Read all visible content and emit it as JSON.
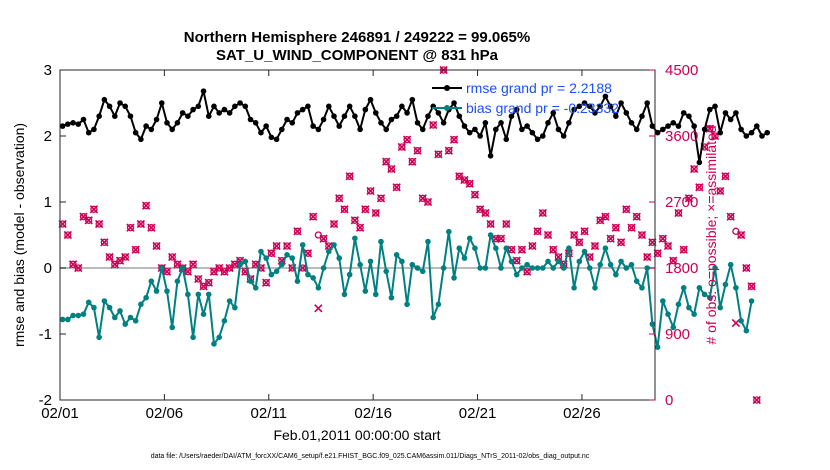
{
  "chart_data": {
    "type": "line",
    "title_line1": "Northern Hemisphere 246891 / 249222 = 99.065%",
    "title_line2": "SAT_U_WIND_COMPONENT @ 831 hPa",
    "xlabel": "Feb.01,2011 00:00:00 start",
    "ylabel": "rmse and bias (model - observation)",
    "ylabel_right": "# of obs: o=possible; ×=assimilated",
    "footnote": "data file: /Users/raeder/DAI/ATM_forcXX/CAM6_setup/f.e21.FHIST_BGC.f09_025.CAM6assim.011/Diags_NTrS_2011-02/obs_diag_output.nc",
    "xlim": [
      0,
      28.5
    ],
    "ylim": [
      -2,
      3
    ],
    "ylim_right": [
      0,
      4500
    ],
    "x_ticks": [
      0,
      5,
      10,
      15,
      20,
      25
    ],
    "x_tick_labels": [
      "02/01",
      "02/06",
      "02/11",
      "02/16",
      "02/21",
      "02/26"
    ],
    "y_ticks": [
      -2,
      -1,
      0,
      1,
      2,
      3
    ],
    "y_tick_labels": [
      "-2",
      "-1",
      "0",
      "1",
      "2",
      "3"
    ],
    "y_right_ticks": [
      0,
      900,
      1800,
      2700,
      3600,
      4500
    ],
    "y_right_tick_labels": [
      "0",
      "900",
      "1800",
      "2700",
      "3600",
      "4500"
    ],
    "zero_line": 0,
    "legend": [
      {
        "label": "rmse grand pr = 2.2188",
        "color": "#000000"
      },
      {
        "label": "bias grand pr = -0.23332",
        "color": "#008080"
      }
    ],
    "series": [
      {
        "name": "rmse",
        "color": "#000000",
        "x_start": 0.125,
        "x_step": 0.25,
        "values": [
          2.15,
          2.18,
          2.2,
          2.18,
          2.25,
          2.05,
          2.1,
          2.3,
          2.55,
          2.45,
          2.3,
          2.5,
          2.45,
          2.3,
          2.05,
          1.95,
          2.15,
          2.1,
          2.25,
          2.5,
          2.2,
          2.1,
          2.2,
          2.35,
          2.3,
          2.4,
          2.45,
          2.68,
          2.3,
          2.45,
          2.35,
          2.4,
          2.35,
          2.45,
          2.5,
          2.45,
          2.25,
          2.2,
          2.05,
          2.15,
          1.98,
          1.95,
          2.1,
          2.25,
          2.2,
          2.35,
          2.4,
          2.45,
          2.15,
          2.1,
          2.25,
          2.45,
          2.3,
          2.15,
          2.3,
          2.45,
          2.3,
          2.1,
          2.4,
          2.55,
          2.35,
          2.2,
          2.1,
          2.25,
          2.3,
          2.45,
          2.35,
          2.55,
          2.2,
          2.1,
          2.3,
          2.45,
          2.35,
          2.2,
          2.4,
          2.5,
          2.3,
          2.15,
          2.05,
          2.1,
          2.0,
          2.2,
          1.7,
          2.1,
          2.2,
          1.95,
          2.3,
          2.4,
          2.1,
          2.15,
          2.05,
          1.95,
          2.0,
          2.2,
          2.35,
          2.1,
          2.0,
          2.2,
          2.4,
          2.45,
          2.5,
          2.45,
          2.35,
          2.45,
          2.6,
          2.45,
          2.3,
          2.5,
          2.35,
          2.2,
          2.1,
          2.3,
          2.5,
          2.15,
          2.05,
          2.1,
          2.15,
          2.2,
          2.15,
          2.35,
          2.3,
          2.15,
          1.6,
          2.1,
          2.4,
          2.45,
          2.05,
          2.35,
          2.25,
          2.35,
          2.1,
          2.0,
          2.05,
          2.15,
          2.0,
          2.05
        ]
      },
      {
        "name": "bias",
        "color": "#008080",
        "x_start": 0.125,
        "x_step": 0.25,
        "values": [
          -0.78,
          -0.78,
          -0.72,
          -0.72,
          -0.7,
          -0.52,
          -0.6,
          -1.05,
          -0.5,
          -0.6,
          -0.75,
          -0.65,
          -0.85,
          -0.75,
          -0.8,
          -0.55,
          -0.45,
          -0.2,
          -0.35,
          0.0,
          -0.35,
          -0.9,
          -0.2,
          0.0,
          -0.4,
          -1.05,
          -0.4,
          -0.7,
          -0.4,
          -1.15,
          -1.05,
          -0.8,
          -0.5,
          -0.6,
          0.05,
          0.1,
          -0.2,
          -0.3,
          0.25,
          0.15,
          -0.1,
          -0.05,
          0.05,
          0.2,
          0.15,
          -0.2,
          0.35,
          -0.1,
          -0.15,
          -0.3,
          0.0,
          0.25,
          0.35,
          0.15,
          -0.4,
          -0.1,
          0.45,
          0.05,
          -0.35,
          0.1,
          -0.4,
          0.4,
          -0.05,
          -0.45,
          0.2,
          0.1,
          -0.55,
          0.05,
          0.0,
          -0.05,
          0.4,
          -0.75,
          -0.55,
          0.0,
          0.55,
          -0.15,
          0.3,
          0.15,
          0.45,
          0.3,
          0.0,
          0.0,
          0.5,
          0.3,
          0.0,
          0.3,
          0.1,
          -0.1,
          0.0,
          0.05,
          0.0,
          0.0,
          0.0,
          0.1,
          0.0,
          0.1,
          0.0,
          0.3,
          -0.3,
          0.1,
          0.25,
          0.0,
          -0.3,
          0.05,
          0.3,
          0.05,
          -0.1,
          0.1,
          0.0,
          0.05,
          -0.2,
          -0.3,
          0.0,
          -0.85,
          -1.2,
          -0.5,
          -0.7,
          -0.9,
          -0.55,
          -0.3,
          -0.6,
          -0.7,
          -0.3,
          -0.4,
          -0.45,
          0.0,
          -0.6,
          -0.25,
          0.05,
          -0.3,
          -0.8,
          -0.95,
          -0.5
        ]
      },
      {
        "name": "obs_possible",
        "color": "#cc0055",
        "marker": "o",
        "x_start": 0.125,
        "x_step": 0.25,
        "values": [
          2400,
          2250,
          1850,
          1800,
          2500,
          2450,
          2600,
          2400,
          2150,
          1950,
          1850,
          1900,
          1950,
          2350,
          2050,
          2400,
          2650,
          2350,
          2100,
          1800,
          1750,
          1950,
          1850,
          1800,
          1750,
          1850,
          1650,
          1550,
          1600,
          1750,
          1800,
          1750,
          1800,
          1850,
          1900,
          1750,
          1650,
          1850,
          1800,
          1600,
          2000,
          2100,
          1900,
          2100,
          1800,
          2300,
          1800,
          2000,
          2500,
          2250,
          2200,
          2100,
          2400,
          2750,
          2600,
          3050,
          2450,
          2350,
          2600,
          2850,
          2550,
          2750,
          3250,
          3150,
          2900,
          3450,
          3550,
          3250,
          3400,
          2750,
          2700,
          3750,
          3350,
          4500,
          3400,
          3550,
          3050,
          3000,
          2950,
          2800,
          2600,
          2550,
          2400,
          2200,
          2200,
          2400,
          2050,
          1900,
          2050,
          1750,
          2100,
          2300,
          2550,
          2250,
          2050,
          1950,
          1850,
          2000,
          2250,
          2150,
          2300,
          1950,
          2100,
          2450,
          2500,
          2200,
          2350,
          2150,
          2600,
          2350,
          2500,
          2250,
          1950,
          2150,
          2000,
          2200,
          2100,
          1900,
          2550,
          2050,
          2750,
          3150,
          2900,
          3450,
          3700,
          3600,
          2850,
          3050,
          2500,
          2300,
          2250,
          1800,
          1550,
          0
        ]
      },
      {
        "name": "obs_assimilated",
        "color": "#cc0055",
        "marker": "x",
        "x_start": 0.125,
        "x_step": 0.25,
        "values": [
          2400,
          2250,
          1850,
          1800,
          2500,
          2450,
          2600,
          2400,
          2150,
          1950,
          1850,
          1900,
          1950,
          2350,
          2050,
          2400,
          2650,
          2350,
          2100,
          1800,
          1750,
          1950,
          1850,
          1800,
          1750,
          1850,
          1650,
          1550,
          1600,
          1750,
          1800,
          1750,
          1800,
          1850,
          1900,
          1750,
          1650,
          1850,
          1800,
          1600,
          2000,
          2100,
          1900,
          2100,
          1800,
          2300,
          1800,
          2000,
          2500,
          1250,
          2200,
          2100,
          2400,
          2750,
          2600,
          3050,
          2450,
          2350,
          2600,
          2850,
          2550,
          2750,
          3250,
          3150,
          2900,
          3450,
          3550,
          3250,
          3400,
          2750,
          2700,
          3750,
          3350,
          4500,
          3400,
          3550,
          3050,
          3000,
          2950,
          2800,
          2600,
          2550,
          2400,
          2200,
          2200,
          2400,
          2050,
          1900,
          2050,
          1750,
          2100,
          2300,
          2550,
          2250,
          2050,
          1950,
          1850,
          2000,
          2250,
          2150,
          2300,
          1950,
          2100,
          2450,
          2500,
          2200,
          2350,
          2150,
          2600,
          2350,
          2500,
          2250,
          1950,
          2150,
          2000,
          2200,
          2100,
          1900,
          2550,
          2050,
          2750,
          3150,
          2900,
          3450,
          3700,
          3600,
          2850,
          3050,
          2500,
          1050,
          2250,
          1800,
          1550,
          0
        ]
      }
    ]
  }
}
